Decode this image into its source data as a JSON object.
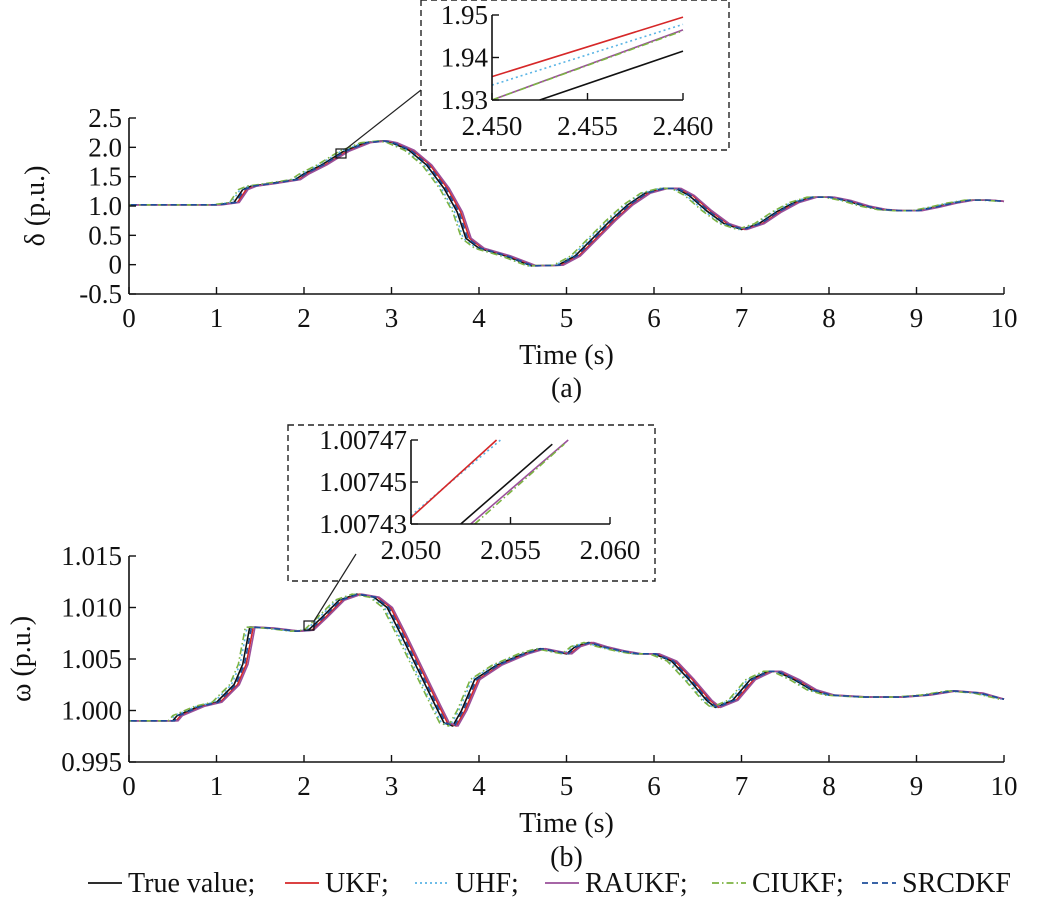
{
  "chart_data": [
    {
      "type": "line",
      "id": "a",
      "caption": "(a)",
      "xlabel": "Time (s)",
      "ylabel": "δ (p.u.)",
      "xlim": [
        0,
        10
      ],
      "ylim": [
        -0.5,
        2.5
      ],
      "xticks": [
        0,
        1,
        2,
        3,
        4,
        5,
        6,
        7,
        8,
        9,
        10
      ],
      "xtick_labels": [
        "0",
        "1",
        "2",
        "3",
        "4",
        "5",
        "6",
        "7",
        "8",
        "9",
        "10"
      ],
      "yticks": [
        -0.5,
        0,
        0.5,
        1.0,
        1.5,
        2.0,
        2.5
      ],
      "ytick_labels": [
        "-0.5",
        "0",
        "0.5",
        "1.0",
        "1.5",
        "2.0",
        "2.5"
      ],
      "x": [
        0,
        0.5,
        1.0,
        1.2,
        1.3,
        1.4,
        1.6,
        1.9,
        2.0,
        2.2,
        2.45,
        2.7,
        2.9,
        3.0,
        3.2,
        3.4,
        3.6,
        3.75,
        3.85,
        4.0,
        4.3,
        4.6,
        4.9,
        5.1,
        5.3,
        5.5,
        5.7,
        5.9,
        6.1,
        6.25,
        6.4,
        6.6,
        6.8,
        7.0,
        7.2,
        7.4,
        7.6,
        7.8,
        8.0,
        8.2,
        8.4,
        8.6,
        8.8,
        9.0,
        9.2,
        9.4,
        9.6,
        9.8,
        10.0
      ],
      "y": [
        1.02,
        1.02,
        1.02,
        1.06,
        1.28,
        1.34,
        1.38,
        1.45,
        1.55,
        1.7,
        1.93,
        2.08,
        2.11,
        2.08,
        1.95,
        1.7,
        1.3,
        0.9,
        0.45,
        0.28,
        0.15,
        -0.02,
        -0.01,
        0.15,
        0.45,
        0.75,
        1.02,
        1.22,
        1.3,
        1.3,
        1.18,
        0.92,
        0.7,
        0.6,
        0.7,
        0.9,
        1.06,
        1.15,
        1.15,
        1.09,
        1.0,
        0.94,
        0.92,
        0.92,
        0.98,
        1.05,
        1.1,
        1.1,
        1.08
      ],
      "inset": {
        "xlim": [
          2.45,
          2.46
        ],
        "ylim": [
          1.93,
          1.95
        ],
        "xticks": [
          2.45,
          2.455,
          2.46
        ],
        "xtick_labels": [
          "2.450",
          "2.455",
          "2.460"
        ],
        "yticks": [
          1.93,
          1.94,
          1.95
        ],
        "ytick_labels": [
          "1.93",
          "1.94",
          "1.95"
        ],
        "focus_x": 2.45,
        "focus_y": 1.93,
        "lines": [
          {
            "series": "UKF",
            "x": [
              2.45,
              2.46
            ],
            "y": [
              1.9355,
              1.9495
            ]
          },
          {
            "series": "UHF",
            "x": [
              2.45,
              2.46
            ],
            "y": [
              1.9335,
              1.9478
            ]
          },
          {
            "series": "RAUKF",
            "x": [
              2.45,
              2.46
            ],
            "y": [
              1.93,
              1.9465
            ]
          },
          {
            "series": "CIUKF",
            "x": [
              2.45,
              2.46
            ],
            "y": [
              1.93,
              1.9463
            ]
          },
          {
            "series": "True value",
            "x": [
              2.4525,
              2.46
            ],
            "y": [
              1.93,
              1.9415
            ]
          }
        ]
      }
    },
    {
      "type": "line",
      "id": "b",
      "caption": "(b)",
      "xlabel": "Time (s)",
      "ylabel": "ω (p.u.)",
      "xlim": [
        0,
        10
      ],
      "ylim": [
        0.995,
        1.015
      ],
      "xticks": [
        0,
        1,
        2,
        3,
        4,
        5,
        6,
        7,
        8,
        9,
        10
      ],
      "xtick_labels": [
        "0",
        "1",
        "2",
        "3",
        "4",
        "5",
        "6",
        "7",
        "8",
        "9",
        "10"
      ],
      "yticks": [
        0.995,
        1.0,
        1.005,
        1.01,
        1.015
      ],
      "ytick_labels": [
        "0.995",
        "1.000",
        "1.005",
        "1.010",
        "1.015"
      ],
      "x": [
        0,
        0.5,
        0.55,
        0.8,
        1.0,
        1.2,
        1.3,
        1.38,
        1.6,
        1.9,
        2.05,
        2.2,
        2.4,
        2.6,
        2.8,
        2.95,
        3.1,
        3.3,
        3.5,
        3.6,
        3.7,
        3.8,
        3.95,
        4.2,
        4.5,
        4.7,
        5.0,
        5.1,
        5.25,
        5.4,
        5.6,
        5.8,
        6.0,
        6.2,
        6.4,
        6.6,
        6.7,
        6.9,
        7.1,
        7.3,
        7.4,
        7.6,
        7.8,
        8.0,
        8.4,
        8.8,
        9.1,
        9.4,
        9.7,
        10.0
      ],
      "y": [
        0.999,
        0.999,
        0.9995,
        1.0004,
        1.0008,
        1.0025,
        1.0045,
        1.0081,
        1.008,
        1.0077,
        1.0078,
        1.009,
        1.0107,
        1.0113,
        1.011,
        1.01,
        1.0075,
        1.004,
        1.0005,
        0.9988,
        0.9985,
        1.0,
        1.003,
        1.0044,
        1.0055,
        1.006,
        1.0055,
        1.0062,
        1.0066,
        1.0062,
        1.0058,
        1.0055,
        1.0055,
        1.0048,
        1.003,
        1.001,
        1.0003,
        1.001,
        1.003,
        1.0038,
        1.0038,
        1.003,
        1.002,
        1.0015,
        1.0013,
        1.0013,
        1.0015,
        1.0019,
        1.0017,
        1.0011
      ],
      "inset": {
        "xlim": [
          2.05,
          2.06
        ],
        "ylim": [
          1.00743,
          1.00747
        ],
        "xticks": [
          2.05,
          2.055,
          2.06
        ],
        "xtick_labels": [
          "2.050",
          "2.055",
          "2.060"
        ],
        "yticks": [
          1.00743,
          1.00745,
          1.00747
        ],
        "ytick_labels": [
          "1.00743",
          "1.00745",
          "1.00747"
        ],
        "focus_x": 2.05,
        "focus_y": 1.00826,
        "lines": [
          {
            "series": "UHF",
            "x": [
              2.05,
              2.0545
            ],
            "y": [
              1.007434,
              1.00747
            ]
          },
          {
            "series": "UKF",
            "x": [
              2.05,
              2.0543
            ],
            "y": [
              1.007433,
              1.00747
            ]
          },
          {
            "series": "True value",
            "x": [
              2.0525,
              2.0571
            ],
            "y": [
              1.00743,
              1.007468
            ]
          },
          {
            "series": "RAUKF",
            "x": [
              2.053,
              2.0579
            ],
            "y": [
              1.00743,
              1.00747
            ]
          },
          {
            "series": "CIUKF",
            "x": [
              2.0532,
              2.0577
            ],
            "y": [
              1.00743,
              1.007468
            ]
          }
        ]
      }
    }
  ],
  "legend": {
    "placement": "bottom",
    "items": [
      {
        "label": "True value;",
        "color": "#111111",
        "dash": "solid"
      },
      {
        "label": "UKF;",
        "color": "#d62728",
        "dash": "solid"
      },
      {
        "label": "UHF;",
        "color": "#5ab4e5",
        "dash": "dot"
      },
      {
        "label": "RAUKF;",
        "color": "#9a4f9a",
        "dash": "solid"
      },
      {
        "label": "CIUKF;",
        "color": "#7cb342",
        "dash": "dashdot"
      },
      {
        "label": "SRCDKF",
        "color": "#1f4e9b",
        "dash": "dash"
      }
    ]
  },
  "series_styles": {
    "True value": {
      "color": "#111111",
      "dash": "solid"
    },
    "UKF": {
      "color": "#d62728",
      "dash": "solid"
    },
    "UHF": {
      "color": "#5ab4e5",
      "dash": "dot"
    },
    "RAUKF": {
      "color": "#9a4f9a",
      "dash": "solid"
    },
    "CIUKF": {
      "color": "#7cb342",
      "dash": "dashdot"
    },
    "SRCDKF": {
      "color": "#1f4e9b",
      "dash": "dash"
    }
  }
}
